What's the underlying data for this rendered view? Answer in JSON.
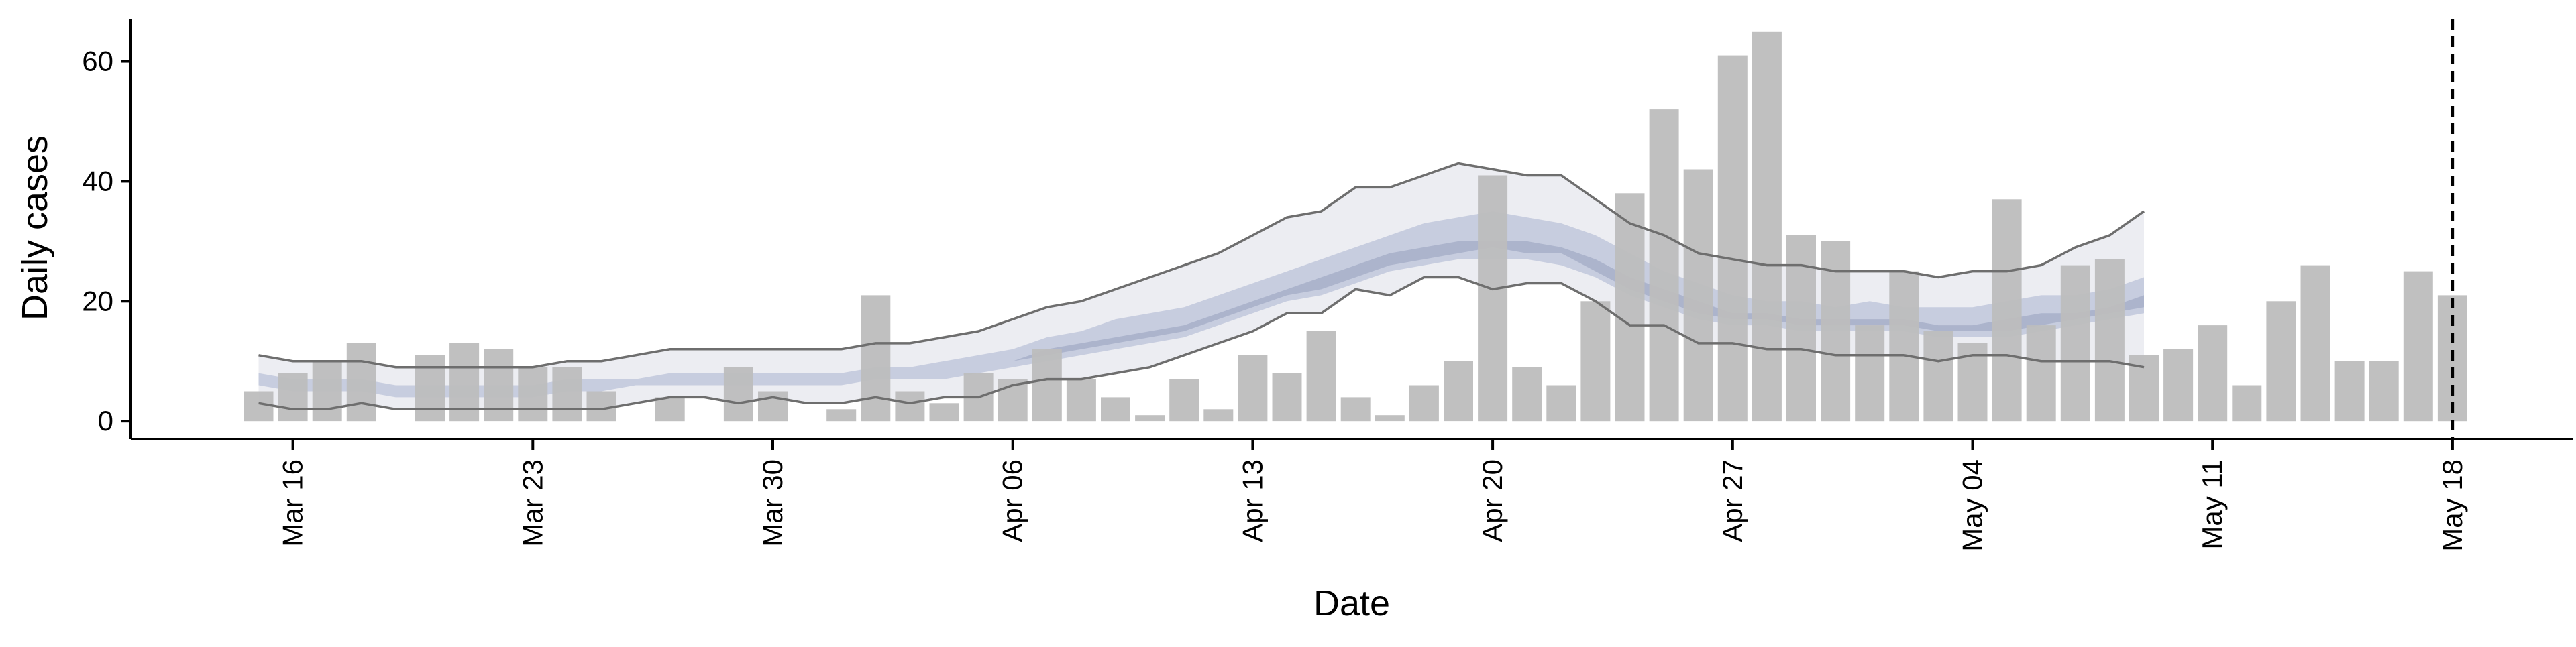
{
  "chart_data": {
    "type": "bar",
    "title": "",
    "xlabel": "Date",
    "ylabel": "Daily cases",
    "x_start": "2020-03-15",
    "dates_per_bar": "daily",
    "ylim": [
      -3,
      68
    ],
    "yticks": [
      0,
      20,
      40,
      60
    ],
    "xticks": [
      "Mar 16",
      "Mar 23",
      "Mar 30",
      "Apr 06",
      "Apr 13",
      "Apr 20",
      "Apr 27",
      "May 04",
      "May 11",
      "May 18"
    ],
    "xtick_dates": [
      "2020-03-16",
      "2020-03-23",
      "2020-03-30",
      "2020-04-06",
      "2020-04-13",
      "2020-04-20",
      "2020-04-27",
      "2020-05-04",
      "2020-05-11",
      "2020-05-18"
    ],
    "reference_line": {
      "date": "2020-05-18",
      "style": "dashed"
    },
    "grid": false,
    "colors": {
      "bars": "#bdbdbd",
      "outer_band": "#eaebf1",
      "inner_band": "#c3c9dd",
      "median_band": "#a7afc9",
      "bound_lines": "#6e6e6e",
      "axis": "#000000"
    },
    "series": [
      {
        "name": "Daily cases",
        "kind": "bar",
        "values": [
          5,
          8,
          10,
          13,
          0,
          11,
          13,
          12,
          9,
          9,
          5,
          0,
          4,
          0,
          9,
          5,
          0,
          2,
          21,
          5,
          3,
          8,
          7,
          12,
          7,
          4,
          1,
          7,
          2,
          11,
          8,
          15,
          4,
          1,
          6,
          10,
          41,
          9,
          6,
          20,
          38,
          52,
          42,
          61,
          65,
          31,
          30,
          16,
          25,
          15,
          13,
          37,
          16,
          26,
          27,
          11,
          12,
          16,
          6,
          20,
          26,
          10,
          10,
          25,
          21
        ]
      },
      {
        "kind": "band-outer",
        "upper": [
          11,
          10,
          10,
          10,
          9,
          9,
          9,
          9,
          9,
          10,
          10,
          11,
          12,
          12,
          12,
          12,
          12,
          12,
          13,
          13,
          14,
          15,
          17,
          19,
          20,
          22,
          24,
          26,
          28,
          31,
          34,
          35,
          39,
          39,
          41,
          43,
          42,
          41,
          41,
          37,
          33,
          31,
          28,
          27,
          26,
          26,
          25,
          25,
          25,
          24,
          25,
          25,
          26,
          29,
          31,
          35
        ],
        "lower": [
          3,
          2,
          2,
          3,
          2,
          2,
          2,
          2,
          2,
          2,
          2,
          3,
          4,
          4,
          3,
          4,
          3,
          3,
          4,
          3,
          4,
          4,
          6,
          7,
          7,
          8,
          9,
          11,
          13,
          15,
          18,
          18,
          22,
          21,
          24,
          24,
          22,
          23,
          23,
          20,
          16,
          16,
          13,
          13,
          12,
          12,
          11,
          11,
          11,
          10,
          11,
          11,
          10,
          10,
          10,
          9
        ]
      },
      {
        "kind": "band-inner",
        "upper": [
          8,
          7,
          7,
          7,
          6,
          6,
          6,
          6,
          6,
          7,
          7,
          7,
          8,
          8,
          8,
          8,
          8,
          8,
          9,
          9,
          10,
          11,
          12,
          14,
          15,
          17,
          18,
          19,
          21,
          23,
          25,
          27,
          29,
          31,
          33,
          34,
          35,
          34,
          33,
          31,
          28,
          25,
          23,
          21,
          20,
          20,
          19,
          20,
          19,
          19,
          19,
          20,
          21,
          21,
          22,
          24
        ],
        "lower": [
          6,
          5,
          5,
          5,
          4,
          4,
          4,
          4,
          4,
          5,
          5,
          6,
          6,
          6,
          6,
          6,
          6,
          6,
          7,
          7,
          7,
          8,
          9,
          10,
          11,
          12,
          13,
          14,
          16,
          18,
          20,
          21,
          23,
          25,
          26,
          27,
          27,
          27,
          26,
          24,
          21,
          19,
          17,
          16,
          16,
          15,
          15,
          15,
          15,
          14,
          14,
          14,
          15,
          16,
          17,
          18
        ]
      },
      {
        "kind": "band-median",
        "upper": [
          7,
          6,
          6,
          6,
          5,
          5,
          5,
          5,
          5,
          6,
          6,
          6,
          7,
          7,
          7,
          7,
          7,
          7,
          8,
          8,
          8,
          9,
          10,
          12,
          13,
          14,
          15,
          16,
          18,
          20,
          22,
          24,
          26,
          28,
          29,
          30,
          30,
          30,
          29,
          27,
          24,
          22,
          20,
          18,
          18,
          17,
          17,
          17,
          17,
          16,
          16,
          17,
          18,
          18,
          19,
          21
        ],
        "lower": [
          7,
          6,
          6,
          6,
          5,
          5,
          5,
          5,
          5,
          6,
          6,
          6,
          7,
          7,
          7,
          7,
          7,
          7,
          8,
          8,
          8,
          9,
          10,
          11,
          12,
          13,
          14,
          15,
          17,
          19,
          21,
          22,
          24,
          26,
          27,
          28,
          29,
          28,
          28,
          25,
          22,
          20,
          18,
          17,
          17,
          16,
          16,
          16,
          16,
          15,
          15,
          15,
          16,
          17,
          18,
          19
        ]
      }
    ]
  }
}
